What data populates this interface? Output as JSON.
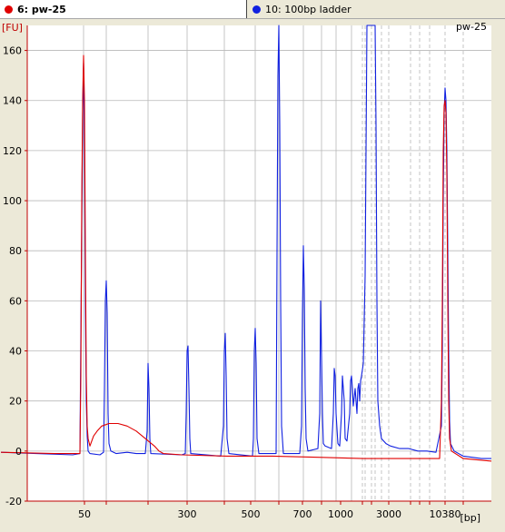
{
  "tabs": [
    {
      "label": "6: pw-25",
      "color": "#e00000",
      "active": true
    },
    {
      "label": "10: 100bp ladder",
      "color": "#1020e0",
      "active": false
    }
  ],
  "chart_data": {
    "type": "line",
    "sample_label": "pw-25",
    "y_unit": "[FU]",
    "x_unit": "[bp]",
    "ylim": [
      -20,
      170
    ],
    "y_ticks": [
      -20,
      0,
      20,
      40,
      60,
      80,
      100,
      120,
      140,
      160
    ],
    "x_tick_labels": [
      "50",
      "300",
      "500",
      "700",
      "1000",
      "3000",
      "10380"
    ],
    "grid": true,
    "series": [
      {
        "color": "#1020e0",
        "points": [
          [
            1,
            -0.5
          ],
          [
            40,
            -1
          ],
          [
            80,
            -1.5
          ],
          [
            88,
            -1
          ],
          [
            89,
            45
          ],
          [
            90,
            90
          ],
          [
            91,
            135
          ],
          [
            92,
            155
          ],
          [
            93,
            120
          ],
          [
            94,
            60
          ],
          [
            95,
            20
          ],
          [
            96,
            6
          ],
          [
            97,
            0
          ],
          [
            99,
            -1
          ],
          [
            110,
            -1.5
          ],
          [
            114,
            -0.5
          ],
          [
            115,
            25
          ],
          [
            116,
            60
          ],
          [
            117,
            68
          ],
          [
            118,
            55
          ],
          [
            119,
            15
          ],
          [
            120,
            3
          ],
          [
            122,
            0
          ],
          [
            128,
            -1
          ],
          [
            140,
            -0.5
          ],
          [
            150,
            -1
          ],
          [
            160,
            -1
          ],
          [
            162,
            8
          ],
          [
            163,
            35
          ],
          [
            164,
            25
          ],
          [
            165,
            5
          ],
          [
            166,
            -1
          ],
          [
            200,
            -1.5
          ],
          [
            204,
            -1
          ],
          [
            205,
            15
          ],
          [
            206,
            40
          ],
          [
            207,
            42
          ],
          [
            208,
            25
          ],
          [
            209,
            5
          ],
          [
            210,
            -1
          ],
          [
            243,
            -2
          ],
          [
            246,
            10
          ],
          [
            247,
            40
          ],
          [
            248,
            47
          ],
          [
            249,
            30
          ],
          [
            250,
            5
          ],
          [
            252,
            -1
          ],
          [
            278,
            -2
          ],
          [
            279,
            5
          ],
          [
            280,
            40
          ],
          [
            281,
            49
          ],
          [
            282,
            35
          ],
          [
            283,
            5
          ],
          [
            285,
            -1
          ],
          [
            304,
            -1
          ],
          [
            305,
            80
          ],
          [
            306,
            150
          ],
          [
            307,
            170
          ],
          [
            308,
            130
          ],
          [
            309,
            60
          ],
          [
            310,
            10
          ],
          [
            312,
            -1
          ],
          [
            330,
            -1
          ],
          [
            332,
            10
          ],
          [
            333,
            55
          ],
          [
            334,
            82
          ],
          [
            335,
            65
          ],
          [
            336,
            25
          ],
          [
            337,
            5
          ],
          [
            339,
            0
          ],
          [
            350,
            1
          ],
          [
            352,
            15
          ],
          [
            353,
            60
          ],
          [
            354,
            38
          ],
          [
            355,
            15
          ],
          [
            356,
            3
          ],
          [
            358,
            2
          ],
          [
            365,
            1
          ],
          [
            367,
            15
          ],
          [
            368,
            33
          ],
          [
            369,
            30
          ],
          [
            370,
            15
          ],
          [
            372,
            3
          ],
          [
            374,
            2
          ],
          [
            376,
            15
          ],
          [
            377,
            30
          ],
          [
            378,
            25
          ],
          [
            379,
            20
          ],
          [
            380,
            5
          ],
          [
            382,
            4
          ],
          [
            385,
            15
          ],
          [
            386,
            28
          ],
          [
            387,
            30
          ],
          [
            388,
            25
          ],
          [
            389,
            18
          ],
          [
            391,
            25
          ],
          [
            392,
            20
          ],
          [
            393,
            15
          ],
          [
            394,
            25
          ],
          [
            395,
            27
          ],
          [
            396,
            20
          ],
          [
            397,
            28
          ],
          [
            398,
            30
          ],
          [
            400,
            35
          ],
          [
            402,
            70
          ],
          [
            404,
            170
          ],
          [
            406,
            170
          ],
          [
            408,
            170
          ],
          [
            410,
            170
          ],
          [
            412,
            170
          ],
          [
            413,
            170
          ],
          [
            414,
            130
          ],
          [
            415,
            60
          ],
          [
            416,
            20
          ],
          [
            418,
            10
          ],
          [
            420,
            5
          ],
          [
            425,
            3
          ],
          [
            430,
            2
          ],
          [
            440,
            1
          ],
          [
            450,
            1
          ],
          [
            460,
            0
          ],
          [
            470,
            0
          ],
          [
            480,
            -0.5
          ],
          [
            486,
            10
          ],
          [
            487,
            40
          ],
          [
            488,
            100
          ],
          [
            489,
            135
          ],
          [
            490,
            145
          ],
          [
            491,
            140
          ],
          [
            492,
            120
          ],
          [
            493,
            80
          ],
          [
            494,
            40
          ],
          [
            495,
            12
          ],
          [
            496,
            3
          ],
          [
            500,
            0
          ],
          [
            510,
            -2
          ],
          [
            530,
            -3
          ],
          [
            541,
            -3
          ]
        ]
      },
      {
        "color": "#e00000",
        "points": [
          [
            1,
            -0.5
          ],
          [
            60,
            -1
          ],
          [
            88,
            -1
          ],
          [
            89,
            30
          ],
          [
            90,
            100
          ],
          [
            91,
            140
          ],
          [
            92,
            158
          ],
          [
            93,
            140
          ],
          [
            94,
            80
          ],
          [
            95,
            30
          ],
          [
            96,
            10
          ],
          [
            97,
            5
          ],
          [
            99,
            2
          ],
          [
            101,
            4
          ],
          [
            103,
            6
          ],
          [
            107,
            8
          ],
          [
            112,
            10
          ],
          [
            120,
            11
          ],
          [
            130,
            11
          ],
          [
            140,
            10
          ],
          [
            150,
            8
          ],
          [
            160,
            5
          ],
          [
            170,
            2
          ],
          [
            175,
            0
          ],
          [
            180,
            -1
          ],
          [
            200,
            -1.5
          ],
          [
            250,
            -2
          ],
          [
            300,
            -2
          ],
          [
            350,
            -2.5
          ],
          [
            400,
            -3
          ],
          [
            450,
            -3
          ],
          [
            484,
            -3
          ],
          [
            486,
            20
          ],
          [
            487,
            60
          ],
          [
            488,
            120
          ],
          [
            489,
            138
          ],
          [
            490,
            140
          ],
          [
            491,
            135
          ],
          [
            492,
            110
          ],
          [
            493,
            60
          ],
          [
            494,
            20
          ],
          [
            495,
            5
          ],
          [
            497,
            0
          ],
          [
            510,
            -3
          ],
          [
            541,
            -4
          ]
        ]
      }
    ]
  }
}
